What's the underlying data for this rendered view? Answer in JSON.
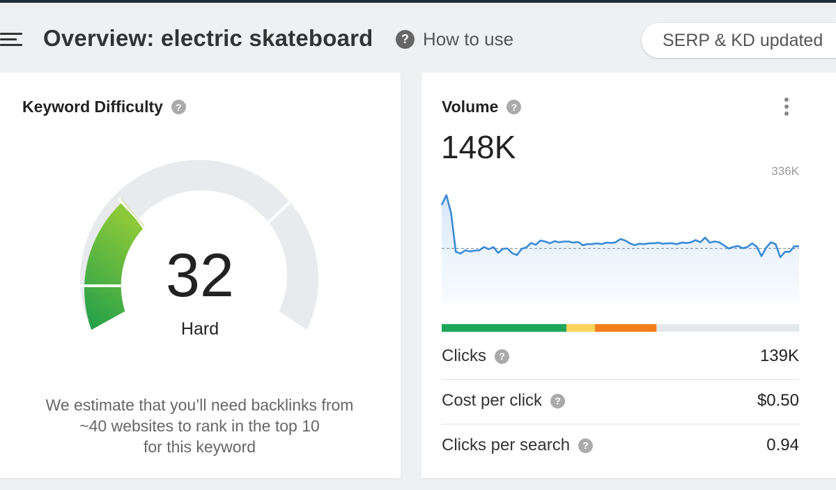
{
  "header": {
    "title": "Overview: electric skateboard",
    "help_label": "How to use",
    "serp_badge": "SERP & KD updated"
  },
  "keyword_difficulty": {
    "title": "Keyword Difficulty",
    "value": "32",
    "level": "Hard",
    "note_lines": [
      "We estimate that you’ll need backlinks from",
      "~40 websites to rank in the top 10",
      "for this keyword"
    ]
  },
  "volume": {
    "title": "Volume",
    "value": "148K",
    "chart_max_label": "336K",
    "trend": [
      267,
      294,
      245,
      139,
      134,
      143,
      140,
      142,
      143,
      152,
      146,
      152,
      136,
      147,
      148,
      135,
      130,
      147,
      151,
      163,
      158,
      170,
      167,
      162,
      168,
      165,
      167,
      167,
      164,
      166,
      157,
      160,
      160,
      162,
      160,
      164,
      163,
      165,
      174,
      170,
      162,
      157,
      161,
      160,
      162,
      162,
      164,
      161,
      162,
      162,
      160,
      164,
      163,
      165,
      171,
      165,
      178,
      164,
      167,
      165,
      157,
      148,
      152,
      155,
      149,
      152,
      162,
      153,
      127,
      150,
      165,
      160,
      124,
      139,
      139,
      154,
      154
    ],
    "avg_level": 148,
    "traffic_split_bar": [
      {
        "color": "#1ea65a",
        "fraction": 0.349
      },
      {
        "color": "#f8d45c",
        "fraction": 0.08
      },
      {
        "color": "#f47d1e",
        "fraction": 0.172
      },
      {
        "color": "#e6e9ec",
        "fraction": 0.399
      }
    ],
    "metrics": [
      {
        "label": "Clicks",
        "value": "139K"
      },
      {
        "label": "Cost per click",
        "value": "$0.50"
      },
      {
        "label": "Clicks per search",
        "value": "0.94"
      }
    ]
  },
  "colors": {
    "gauge_green_light": "#8cc83a",
    "gauge_green_dark": "#1e9e4a",
    "gauge_track": "#e8eaed",
    "chart_line": "#3a8ad6",
    "help_icon": "#666666"
  }
}
